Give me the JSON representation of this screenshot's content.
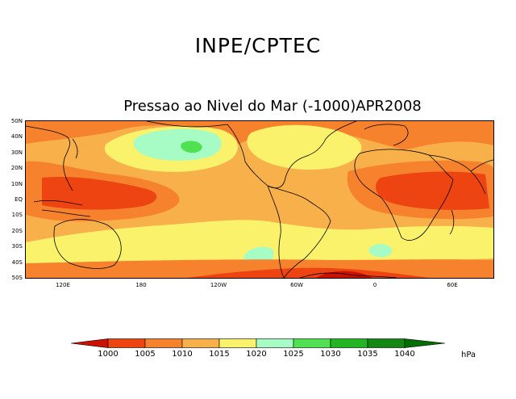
{
  "header": {
    "title": "INPE/CPTEC"
  },
  "map": {
    "title": "Pressao ao Nivel do Mar (-1000)APR2008",
    "lat_labels": [
      "50N",
      "40N",
      "30N",
      "20N",
      "10N",
      "EQ",
      "10S",
      "20S",
      "30S",
      "40S",
      "50S"
    ],
    "lon_labels": [
      "120E",
      "180",
      "120W",
      "60W",
      "0",
      "60E"
    ]
  },
  "legend": {
    "levels": [
      "1000",
      "1005",
      "1010",
      "1015",
      "1020",
      "1025",
      "1030",
      "1035",
      "1040"
    ],
    "colors": [
      "#cc1100",
      "#ee4411",
      "#f7822e",
      "#f7b04a",
      "#fbf26c",
      "#a6fcc4",
      "#4fe14f",
      "#24b524",
      "#128812",
      "#006e00"
    ],
    "unit": "hPa"
  }
}
